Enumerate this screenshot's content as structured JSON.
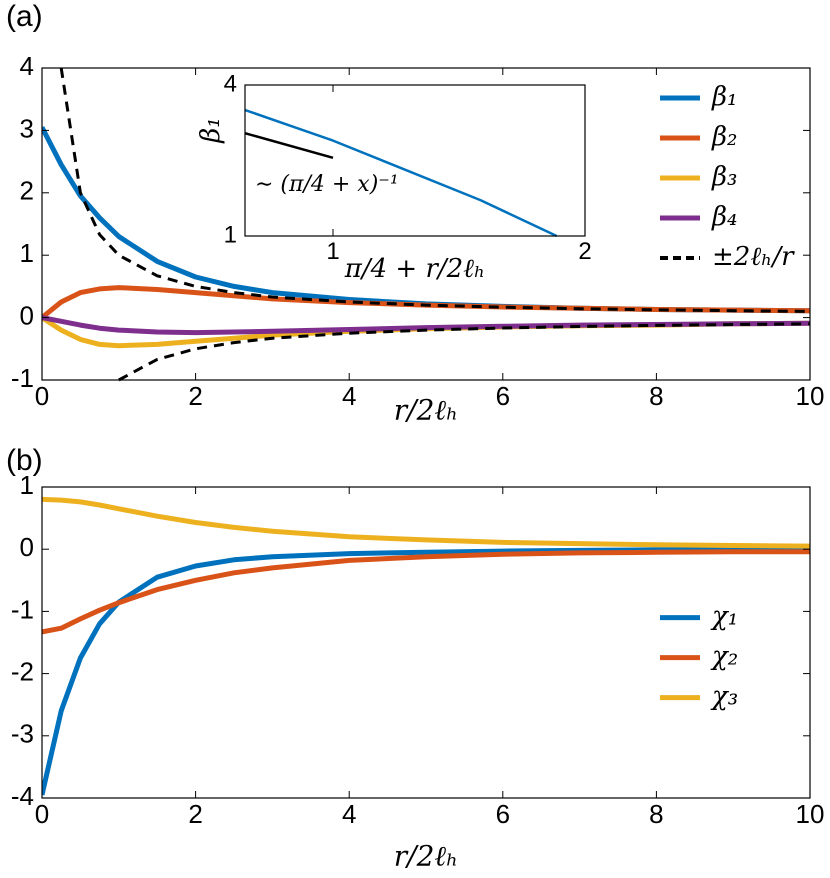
{
  "chart_data": [
    {
      "type": "line",
      "panel_label": "(a)",
      "x_label": "r/2ℓₕ",
      "legend": "northeast",
      "x": [
        0,
        0.25,
        0.5,
        0.75,
        1,
        1.5,
        2,
        2.5,
        3,
        4,
        5,
        6,
        7,
        8,
        9,
        10
      ],
      "xlim": [
        0,
        10
      ],
      "xticks": [
        0,
        2,
        4,
        6,
        8,
        10
      ],
      "ylim": [
        -1,
        4
      ],
      "yticks": [
        -1,
        0,
        1,
        2,
        3,
        4
      ],
      "series": [
        {
          "name": "β₁",
          "color": "#0072bd",
          "values": [
            3.05,
            2.45,
            1.95,
            1.6,
            1.3,
            0.9,
            0.65,
            0.5,
            0.4,
            0.29,
            0.22,
            0.18,
            0.15,
            0.13,
            0.12,
            0.11
          ]
        },
        {
          "name": "β₂",
          "color": "#d95319",
          "values": [
            0,
            0.25,
            0.4,
            0.46,
            0.48,
            0.45,
            0.4,
            0.35,
            0.3,
            0.24,
            0.2,
            0.17,
            0.15,
            0.13,
            0.12,
            0.11
          ]
        },
        {
          "name": "β₃",
          "color": "#edb120",
          "values": [
            0,
            -0.2,
            -0.35,
            -0.43,
            -0.45,
            -0.43,
            -0.38,
            -0.33,
            -0.28,
            -0.22,
            -0.18,
            -0.15,
            -0.13,
            -0.12,
            -0.1,
            -0.09
          ]
        },
        {
          "name": "β₄",
          "color": "#7e2f8e",
          "values": [
            0,
            -0.06,
            -0.12,
            -0.17,
            -0.2,
            -0.23,
            -0.24,
            -0.23,
            -0.22,
            -0.19,
            -0.16,
            -0.14,
            -0.12,
            -0.11,
            -0.1,
            -0.09
          ]
        },
        {
          "name": "±2ℓₕ/r",
          "color": "#000000",
          "linestyle": "dashed",
          "values": [
            null,
            4,
            2,
            1.33,
            1,
            0.67,
            0.5,
            0.4,
            0.33,
            0.25,
            0.2,
            0.167,
            0.143,
            0.125,
            0.111,
            0.1
          ]
        },
        {
          "color": "#000000",
          "linestyle": "dashed",
          "values": [
            null,
            null,
            null,
            null,
            -1,
            -0.67,
            -0.5,
            -0.4,
            -0.33,
            -0.25,
            -0.2,
            -0.167,
            -0.143,
            -0.125,
            -0.111,
            -0.1
          ]
        }
      ]
    },
    {
      "type": "line",
      "x_label": "π/4 + r/2ℓₕ",
      "y_label": "β₁",
      "annotation": "∼ (π/4 + x)⁻¹",
      "xscale": "log",
      "yscale": "log",
      "xlim": [
        0.785,
        2
      ],
      "xticks": [
        1,
        2
      ],
      "ylim": [
        1,
        4
      ],
      "yticks": [
        1,
        4
      ],
      "series": [
        {
          "color": "#0072bd",
          "x": [
            0.785,
            1,
            1.5,
            1.85
          ],
          "values": [
            3.18,
            2.4,
            1.39,
            1
          ]
        },
        {
          "color": "#000000",
          "x": [
            0.785,
            1
          ],
          "values": [
            2.57,
            2.05
          ]
        }
      ]
    },
    {
      "type": "line",
      "panel_label": "(b)",
      "x_label": "r/2ℓₕ",
      "legend": "east",
      "x": [
        0,
        0.25,
        0.5,
        0.75,
        1,
        1.5,
        2,
        2.5,
        3,
        4,
        5,
        6,
        7,
        8,
        9,
        10
      ],
      "xlim": [
        0,
        10
      ],
      "xticks": [
        0,
        2,
        4,
        6,
        8,
        10
      ],
      "ylim": [
        -4,
        1
      ],
      "yticks": [
        -4,
        -3,
        -2,
        -1,
        0,
        1
      ],
      "series": [
        {
          "name": "χ₁",
          "color": "#0072bd",
          "values": [
            -3.95,
            -2.6,
            -1.75,
            -1.2,
            -0.85,
            -0.45,
            -0.27,
            -0.17,
            -0.12,
            -0.07,
            -0.05,
            -0.03,
            -0.02,
            -0.01,
            -0.01,
            -0.01
          ]
        },
        {
          "name": "χ₂",
          "color": "#d95319",
          "values": [
            -1.33,
            -1.27,
            -1.12,
            -0.98,
            -0.86,
            -0.65,
            -0.5,
            -0.38,
            -0.3,
            -0.18,
            -0.12,
            -0.08,
            -0.06,
            -0.05,
            -0.04,
            -0.04
          ]
        },
        {
          "name": "χ₃",
          "color": "#edb120",
          "values": [
            0.8,
            0.79,
            0.76,
            0.71,
            0.65,
            0.53,
            0.43,
            0.35,
            0.29,
            0.2,
            0.15,
            0.11,
            0.09,
            0.07,
            0.06,
            0.05
          ]
        }
      ]
    }
  ]
}
